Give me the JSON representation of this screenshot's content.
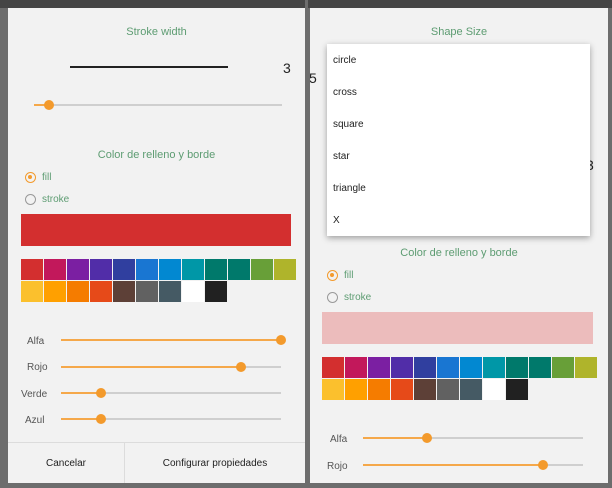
{
  "left": {
    "stroke_title": "Stroke width",
    "stroke_value": "3",
    "stroke_slider_value": 0.06,
    "color_title": "Color de relleno y borde",
    "fill_label": "fill",
    "stroke_label": "stroke",
    "selected_option": "fill",
    "preview_color": "#d32f2f",
    "sliders": [
      {
        "label": "Alfa",
        "value": 1.0
      },
      {
        "label": "Rojo",
        "value": 0.82
      },
      {
        "label": "Verde",
        "value": 0.18
      },
      {
        "label": "Azul",
        "value": 0.18
      }
    ],
    "cancel_label": "Cancelar",
    "configure_label": "Configurar propiedades"
  },
  "right": {
    "shape_title": "Shape Size",
    "shape_options": [
      "circle",
      "cross",
      "square",
      "star",
      "triangle",
      "X"
    ],
    "partial_left": "5",
    "partial_right": "3",
    "color_title": "Color de relleno y borde",
    "fill_label": "fill",
    "stroke_label": "stroke",
    "selected_option": "fill",
    "preview_color": "#ecbcbc",
    "sliders": [
      {
        "label": "Alfa",
        "value": 0.29
      },
      {
        "label": "Rojo",
        "value": 0.82
      }
    ]
  },
  "palette": [
    "#d32f2f",
    "#c2185b",
    "#7b1fa2",
    "#512da8",
    "#303f9f",
    "#1976d2",
    "#0288d1",
    "#0097a7",
    "#00796b",
    "#00796b",
    "#689f38",
    "#afb42b",
    "#fbc02d",
    "#ffa000",
    "#f57c00",
    "#e64a19",
    "#5d4037",
    "#616161",
    "#455a64",
    "#ffffff",
    "#212121"
  ]
}
